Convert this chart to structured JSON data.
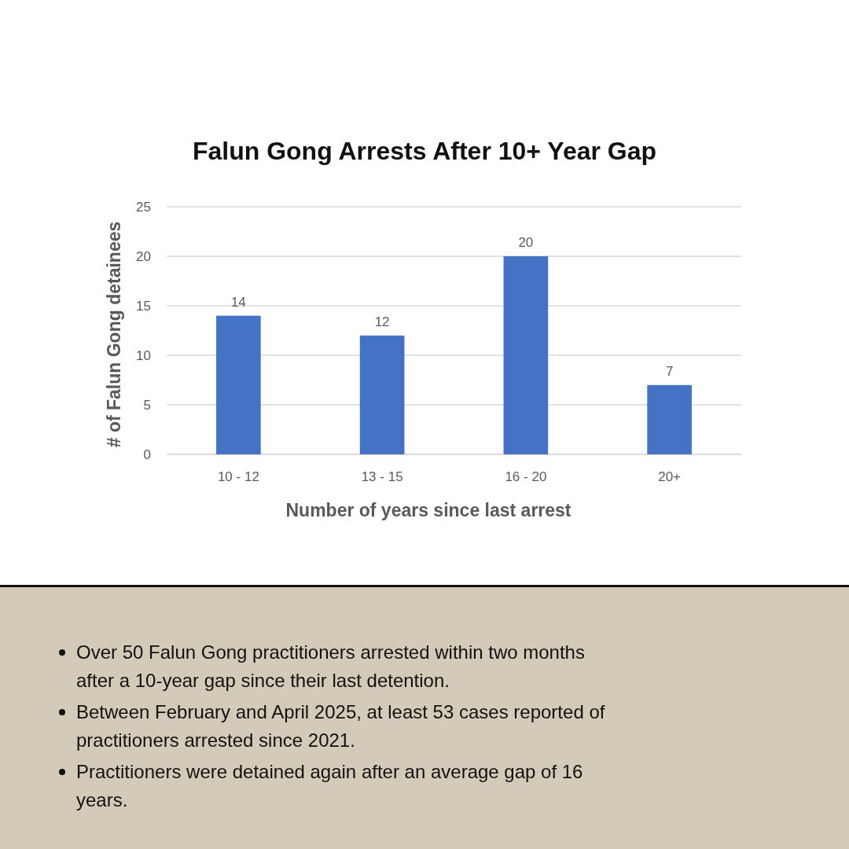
{
  "chart_data": {
    "type": "bar",
    "title": "Falun Gong Arrests After 10+ Year Gap",
    "xlabel": "Number of years since last arrest",
    "ylabel": "# of Falun Gong detainees",
    "categories": [
      "10 - 12",
      "13 - 15",
      "16 - 20",
      "20+"
    ],
    "values": [
      14,
      12,
      20,
      7
    ],
    "color": "#4472c4",
    "ylim": [
      0,
      25
    ],
    "yticks": [
      0,
      5,
      10,
      15,
      20,
      25
    ],
    "grid": "y",
    "data_labels": true,
    "annotations": [
      "Over 50 Falun Gong practitioners arrested within two months after a 10-year gap since their last detention.",
      "Between February and April 2025, at least 53 cases reported of practitioners arrested since 2021.",
      "Practitioners were detained again after an average gap of 16 years."
    ]
  }
}
